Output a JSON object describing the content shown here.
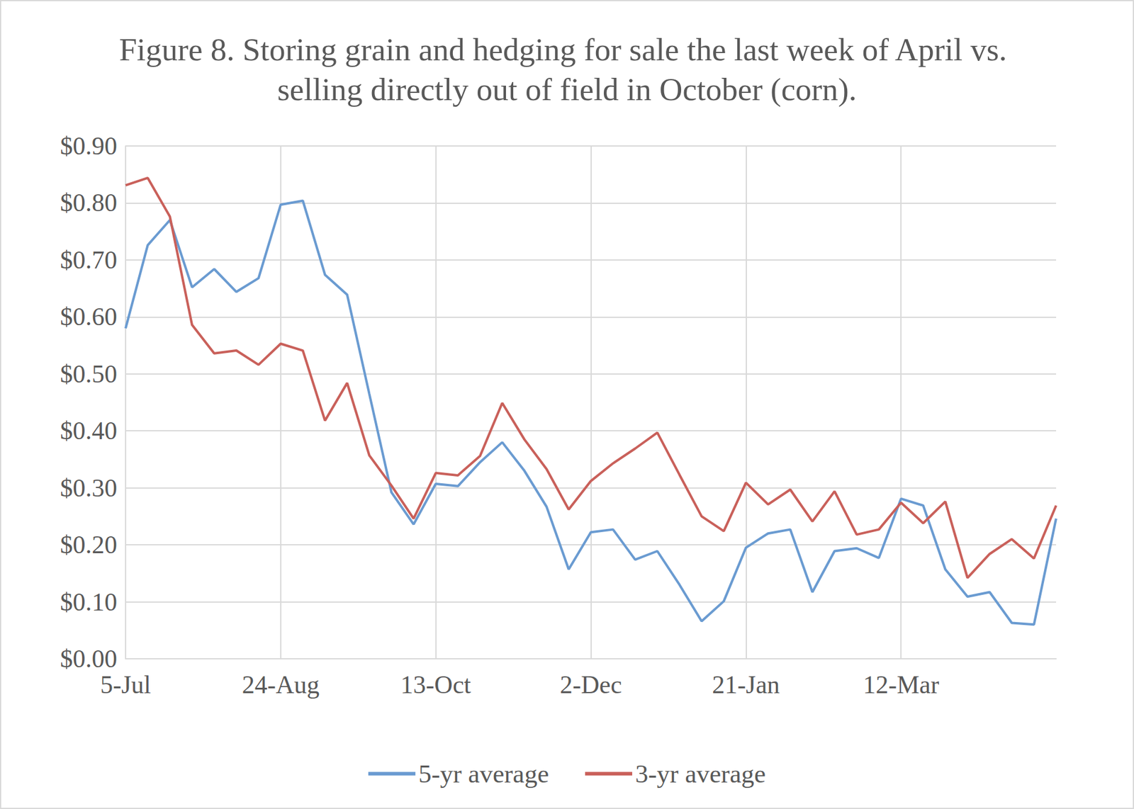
{
  "chart_data": {
    "type": "line",
    "title": "Figure 8. Storing grain and hedging for sale the last week of April vs. selling directly out of field in October (corn).",
    "categories": [
      "5-Jul",
      null,
      null,
      null,
      null,
      null,
      null,
      "24-Aug",
      null,
      null,
      null,
      null,
      null,
      null,
      "13-Oct",
      null,
      null,
      null,
      null,
      null,
      null,
      "2-Dec",
      null,
      null,
      null,
      null,
      null,
      null,
      "21-Jan",
      null,
      null,
      null,
      null,
      null,
      null,
      "12-Mar",
      null,
      null,
      null,
      null,
      null,
      null,
      null
    ],
    "series": [
      {
        "name": "5-yr average",
        "color": "#6a9bd1",
        "values": [
          0.58,
          0.726,
          0.77,
          0.652,
          0.684,
          0.644,
          0.668,
          0.797,
          0.804,
          0.674,
          0.639,
          0.465,
          0.292,
          0.236,
          0.307,
          0.303,
          0.345,
          0.38,
          0.33,
          0.267,
          0.157,
          0.222,
          0.227,
          0.174,
          0.189,
          0.13,
          0.066,
          0.101,
          0.195,
          0.22,
          0.227,
          0.117,
          0.189,
          0.194,
          0.177,
          0.281,
          0.269,
          0.157,
          0.109,
          0.117,
          0.063,
          0.06,
          0.246
        ]
      },
      {
        "name": "3-yr average",
        "color": "#c9605a",
        "values": [
          0.831,
          0.844,
          0.776,
          0.586,
          0.536,
          0.541,
          0.516,
          0.553,
          0.541,
          0.418,
          0.484,
          0.357,
          0.304,
          0.246,
          0.326,
          0.322,
          0.356,
          0.449,
          0.385,
          0.333,
          0.262,
          0.312,
          0.343,
          0.369,
          0.397,
          0.323,
          0.25,
          0.224,
          0.309,
          0.271,
          0.297,
          0.241,
          0.294,
          0.218,
          0.227,
          0.274,
          0.238,
          0.276,
          0.142,
          0.184,
          0.21,
          0.176,
          0.269
        ]
      }
    ],
    "ylim": [
      0,
      0.9
    ],
    "yticks": [
      {
        "value": 0,
        "label": "$0.00"
      },
      {
        "value": 0.1,
        "label": "$0.10"
      },
      {
        "value": 0.2,
        "label": "$0.20"
      },
      {
        "value": 0.3,
        "label": "$0.30"
      },
      {
        "value": 0.4,
        "label": "$0.40"
      },
      {
        "value": 0.5,
        "label": "$0.50"
      },
      {
        "value": 0.6,
        "label": "$0.60"
      },
      {
        "value": 0.7,
        "label": "$0.70"
      },
      {
        "value": 0.8,
        "label": "$0.80"
      },
      {
        "value": 0.9,
        "label": "$0.90"
      }
    ],
    "grid": true,
    "legend": "bottom"
  }
}
